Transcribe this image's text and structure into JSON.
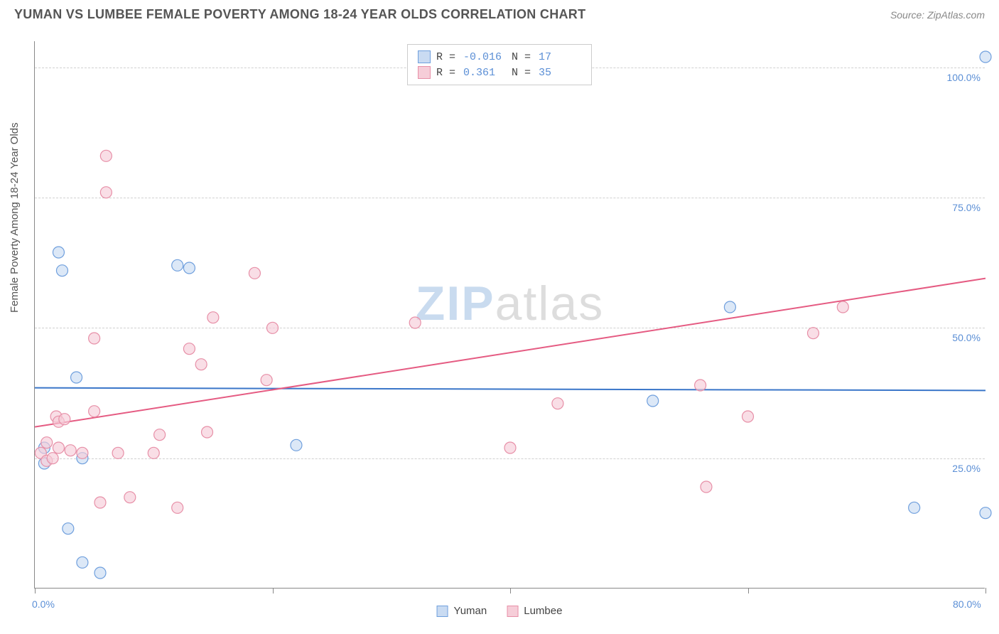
{
  "header": {
    "title": "YUMAN VS LUMBEE FEMALE POVERTY AMONG 18-24 YEAR OLDS CORRELATION CHART",
    "source": "Source: ZipAtlas.com"
  },
  "ylabel": "Female Poverty Among 18-24 Year Olds",
  "watermark": {
    "part1": "ZIP",
    "part2": "atlas"
  },
  "stats_legend": [
    {
      "swatch_fill": "#c9dbf2",
      "swatch_border": "#6f9fdd",
      "r_label": "R =",
      "r_value": "-0.016",
      "n_label": "N =",
      "n_value": "17"
    },
    {
      "swatch_fill": "#f6cdd8",
      "swatch_border": "#e78fa7",
      "r_label": "R =",
      "r_value": " 0.361",
      "n_label": "N =",
      "n_value": "35"
    }
  ],
  "series_legend": [
    {
      "name": "Yuman",
      "swatch_fill": "#c9dbf2",
      "swatch_border": "#6f9fdd"
    },
    {
      "name": "Lumbee",
      "swatch_fill": "#f6cdd8",
      "swatch_border": "#e78fa7"
    }
  ],
  "chart": {
    "type": "scatter",
    "xlim": [
      0,
      80
    ],
    "ylim": [
      0,
      105
    ],
    "x_ticks": [
      0,
      20,
      40,
      60,
      80
    ],
    "x_tick_labels": [
      "0.0%",
      "",
      "",
      "",
      "80.0%"
    ],
    "y_ticks": [
      25,
      50,
      75,
      100
    ],
    "y_tick_labels": [
      "25.0%",
      "50.0%",
      "75.0%",
      "100.0%"
    ],
    "grid_color": "#d0d0d0",
    "axis_color": "#888888",
    "tick_label_color": "#5b8fd6",
    "background_color": "#ffffff",
    "marker_radius": 8,
    "marker_opacity": 0.65,
    "marker_stroke_width": 1.2,
    "line_width": 2,
    "series": [
      {
        "name": "Yuman",
        "fill": "#c9dbf2",
        "stroke": "#6f9fdd",
        "line_color": "#3a76c9",
        "regression": {
          "x1": 0,
          "y1": 38.5,
          "x2": 80,
          "y2": 38.0
        },
        "points": [
          [
            0.8,
            24.0
          ],
          [
            0.8,
            27.0
          ],
          [
            2.0,
            64.5
          ],
          [
            2.3,
            61.0
          ],
          [
            2.8,
            11.5
          ],
          [
            3.5,
            40.5
          ],
          [
            4.0,
            5.0
          ],
          [
            4.0,
            25.0
          ],
          [
            5.5,
            3.0
          ],
          [
            12.0,
            62.0
          ],
          [
            13.0,
            61.5
          ],
          [
            22.0,
            27.5
          ],
          [
            52.0,
            36.0
          ],
          [
            58.5,
            54.0
          ],
          [
            74.0,
            15.5
          ],
          [
            80.0,
            14.5
          ],
          [
            80.0,
            102.0
          ]
        ]
      },
      {
        "name": "Lumbee",
        "fill": "#f6cdd8",
        "stroke": "#e78fa7",
        "line_color": "#e55b82",
        "regression": {
          "x1": 0,
          "y1": 31.0,
          "x2": 80,
          "y2": 59.5
        },
        "points": [
          [
            0.5,
            26.0
          ],
          [
            1.0,
            24.5
          ],
          [
            1.0,
            28.0
          ],
          [
            1.5,
            25.0
          ],
          [
            1.8,
            33.0
          ],
          [
            2.0,
            27.0
          ],
          [
            2.0,
            32.0
          ],
          [
            2.5,
            32.5
          ],
          [
            3.0,
            26.5
          ],
          [
            4.0,
            26.0
          ],
          [
            5.0,
            34.0
          ],
          [
            5.0,
            48.0
          ],
          [
            5.5,
            16.5
          ],
          [
            6.0,
            76.0
          ],
          [
            6.0,
            83.0
          ],
          [
            7.0,
            26.0
          ],
          [
            8.0,
            17.5
          ],
          [
            10.0,
            26.0
          ],
          [
            10.5,
            29.5
          ],
          [
            12.0,
            15.5
          ],
          [
            13.0,
            46.0
          ],
          [
            14.0,
            43.0
          ],
          [
            14.5,
            30.0
          ],
          [
            15.0,
            52.0
          ],
          [
            18.5,
            60.5
          ],
          [
            19.5,
            40.0
          ],
          [
            20.0,
            50.0
          ],
          [
            32.0,
            51.0
          ],
          [
            40.0,
            27.0
          ],
          [
            44.0,
            35.5
          ],
          [
            56.0,
            39.0
          ],
          [
            56.5,
            19.5
          ],
          [
            60.0,
            33.0
          ],
          [
            65.5,
            49.0
          ],
          [
            68.0,
            54.0
          ]
        ]
      }
    ]
  }
}
